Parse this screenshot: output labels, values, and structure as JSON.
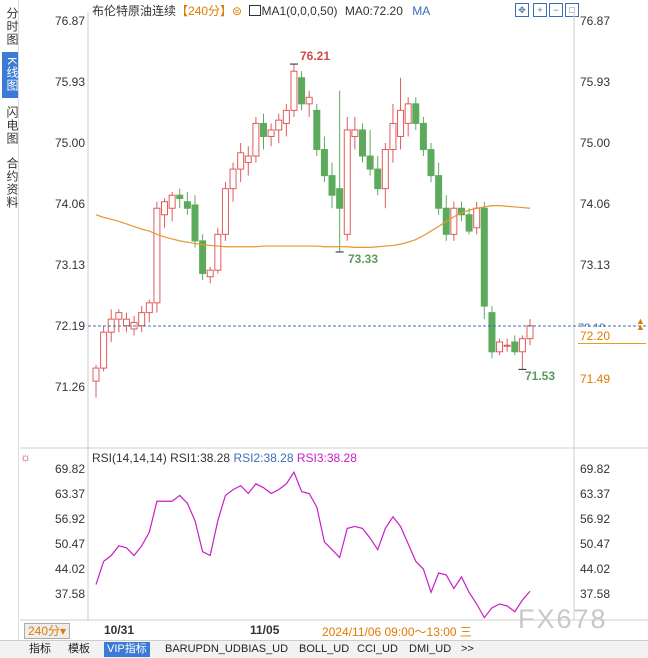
{
  "sidebar": {
    "tabs": [
      {
        "label": "分时图",
        "active": false
      },
      {
        "label": "K线图",
        "active": true
      },
      {
        "label": "闪电图",
        "active": false
      },
      {
        "label": "合约资料",
        "active": false
      }
    ]
  },
  "header": {
    "title": "布伦特原油连续",
    "period": "【240分】",
    "ma_label": "MA1(0,0,0,50)",
    "ma0": "MA0:72.20",
    "ma_tag": "MA"
  },
  "price_panel": {
    "y_ticks": [
      "76.87",
      "75.93",
      "75.00",
      "74.06",
      "73.13",
      "72.19",
      "71.26"
    ],
    "right_ticks_top": [
      "76.87",
      "75.93",
      "75.00",
      "74.06",
      "73.13"
    ],
    "last_price_tag": "72.20",
    "low_tag": "71.49",
    "ma_color": "#e8962e",
    "up_color": "#e05b5b",
    "down_color": "#5cab5c"
  },
  "annotations": {
    "high": "76.21",
    "mid_low": "73.33",
    "low": "71.53"
  },
  "rsi_panel": {
    "title": "RSI(14,14,14)",
    "rsi1": "RSI1:38.28",
    "rsi2": "RSI2:38.28",
    "rsi3": "RSI3:38.28",
    "y_ticks": [
      "69.82",
      "63.37",
      "56.92",
      "50.47",
      "44.02",
      "37.58"
    ],
    "line_color": "#c81ec8"
  },
  "footer": {
    "period_button": "240分",
    "date_1": "10/31",
    "date_2": "11/05",
    "cursor_time": "2024/11/06 09:00～13:00 三",
    "watermark": "FX678"
  },
  "bottom_tabs": [
    "指标",
    "模板",
    "VIP指标",
    "BARUPDN_UD",
    "BIAS_UD",
    "BOLL_UD",
    "CCI_UD",
    "DMI_UD",
    ">>"
  ],
  "chart_data": {
    "type": "candlestick",
    "title": "布伦特原油连续",
    "price_ylim": [
      71.0,
      77.0
    ],
    "ohlc": [
      [
        71.35,
        71.6,
        71.1,
        71.55
      ],
      [
        71.55,
        72.2,
        71.5,
        72.1
      ],
      [
        72.1,
        72.45,
        71.95,
        72.3
      ],
      [
        72.3,
        72.45,
        72.1,
        72.4
      ],
      [
        72.2,
        72.4,
        72.1,
        72.3
      ],
      [
        72.15,
        72.35,
        72.05,
        72.25
      ],
      [
        72.2,
        72.5,
        72.1,
        72.4
      ],
      [
        72.4,
        72.6,
        72.25,
        72.55
      ],
      [
        72.55,
        74.1,
        72.4,
        74.0
      ],
      [
        73.9,
        74.15,
        73.7,
        74.1
      ],
      [
        74.0,
        74.25,
        73.8,
        74.2
      ],
      [
        74.2,
        74.3,
        74.0,
        74.15
      ],
      [
        74.1,
        74.25,
        73.9,
        74.0
      ],
      [
        74.05,
        74.2,
        73.4,
        73.5
      ],
      [
        73.5,
        73.6,
        72.9,
        73.0
      ],
      [
        72.95,
        73.1,
        72.85,
        73.05
      ],
      [
        73.05,
        73.7,
        73.0,
        73.6
      ],
      [
        73.6,
        74.4,
        73.5,
        74.3
      ],
      [
        74.3,
        74.7,
        74.1,
        74.6
      ],
      [
        74.6,
        75.0,
        74.4,
        74.85
      ],
      [
        74.7,
        74.95,
        74.5,
        74.8
      ],
      [
        74.8,
        75.4,
        74.7,
        75.3
      ],
      [
        75.3,
        75.45,
        74.9,
        75.1
      ],
      [
        75.1,
        75.3,
        74.95,
        75.2
      ],
      [
        75.2,
        75.45,
        75.0,
        75.35
      ],
      [
        75.3,
        75.6,
        75.1,
        75.5
      ],
      [
        75.5,
        76.21,
        75.4,
        76.1
      ],
      [
        76.0,
        76.1,
        75.5,
        75.6
      ],
      [
        75.6,
        75.8,
        75.4,
        75.7
      ],
      [
        75.5,
        75.6,
        74.8,
        74.9
      ],
      [
        74.9,
        75.1,
        74.4,
        74.5
      ],
      [
        74.5,
        74.7,
        74.0,
        74.2
      ],
      [
        74.3,
        75.8,
        73.33,
        74.0
      ],
      [
        73.6,
        75.4,
        73.5,
        75.2
      ],
      [
        75.1,
        75.4,
        74.9,
        75.2
      ],
      [
        75.2,
        75.3,
        74.7,
        74.8
      ],
      [
        74.8,
        75.2,
        74.5,
        74.6
      ],
      [
        74.6,
        74.8,
        74.2,
        74.3
      ],
      [
        74.3,
        75.0,
        74.0,
        74.9
      ],
      [
        74.9,
        75.6,
        74.7,
        75.3
      ],
      [
        75.1,
        76.0,
        74.9,
        75.5
      ],
      [
        75.3,
        75.7,
        75.1,
        75.6
      ],
      [
        75.6,
        75.7,
        75.2,
        75.3
      ],
      [
        75.3,
        75.4,
        74.8,
        74.9
      ],
      [
        74.9,
        75.0,
        74.4,
        74.5
      ],
      [
        74.5,
        74.7,
        73.9,
        74.0
      ],
      [
        74.0,
        74.2,
        73.5,
        73.6
      ],
      [
        73.6,
        74.1,
        73.5,
        74.0
      ],
      [
        74.0,
        74.1,
        73.8,
        73.9
      ],
      [
        73.9,
        74.0,
        73.6,
        73.65
      ],
      [
        73.7,
        74.1,
        73.6,
        74.0
      ],
      [
        74.0,
        74.1,
        72.3,
        72.5
      ],
      [
        72.4,
        72.5,
        71.7,
        71.8
      ],
      [
        71.8,
        72.0,
        71.75,
        71.95
      ],
      [
        71.9,
        72.0,
        71.8,
        71.9
      ],
      [
        71.95,
        72.05,
        71.75,
        71.8
      ],
      [
        71.8,
        72.05,
        71.53,
        72.0
      ],
      [
        72.0,
        72.3,
        71.9,
        72.2
      ]
    ],
    "ma50": [
      73.9,
      73.86,
      73.83,
      73.8,
      73.76,
      73.72,
      73.68,
      73.65,
      73.6,
      73.56,
      73.53,
      73.5,
      73.48,
      73.46,
      73.44,
      73.43,
      73.42,
      73.41,
      73.41,
      73.41,
      73.41,
      73.41,
      73.42,
      73.42,
      73.42,
      73.42,
      73.42,
      73.42,
      73.42,
      73.42,
      73.41,
      73.41,
      73.41,
      73.41,
      73.4,
      73.4,
      73.4,
      73.41,
      73.42,
      73.43,
      73.45,
      73.48,
      73.52,
      73.58,
      73.65,
      73.72,
      73.8,
      73.87,
      73.93,
      73.97,
      74.0,
      74.02,
      74.04,
      74.04,
      74.03,
      74.02,
      74.01,
      74.0
    ],
    "rsi": [
      40.0,
      46.0,
      47.5,
      50.0,
      49.5,
      47.5,
      50.0,
      53.5,
      61.5,
      61.5,
      61.5,
      63.0,
      61.0,
      56.5,
      48.5,
      47.5,
      56.5,
      63.0,
      64.5,
      65.5,
      63.5,
      66.0,
      65.0,
      63.5,
      64.5,
      66.0,
      69.0,
      64.0,
      63.5,
      60.0,
      51.0,
      49.0,
      47.0,
      54.5,
      55.0,
      54.5,
      52.0,
      49.0,
      54.5,
      57.5,
      55.0,
      50.5,
      46.0,
      44.0,
      38.0,
      43.0,
      42.5,
      39.0,
      42.0,
      38.0,
      35.0,
      31.5,
      34.0,
      35.0,
      34.5,
      33.0,
      36.0,
      38.28
    ],
    "rsi_ylim": [
      31.0,
      72.0
    ],
    "x_labels": [
      {
        "index": 6,
        "label": "10/31"
      },
      {
        "index": 40,
        "label": "11/05"
      }
    ]
  }
}
